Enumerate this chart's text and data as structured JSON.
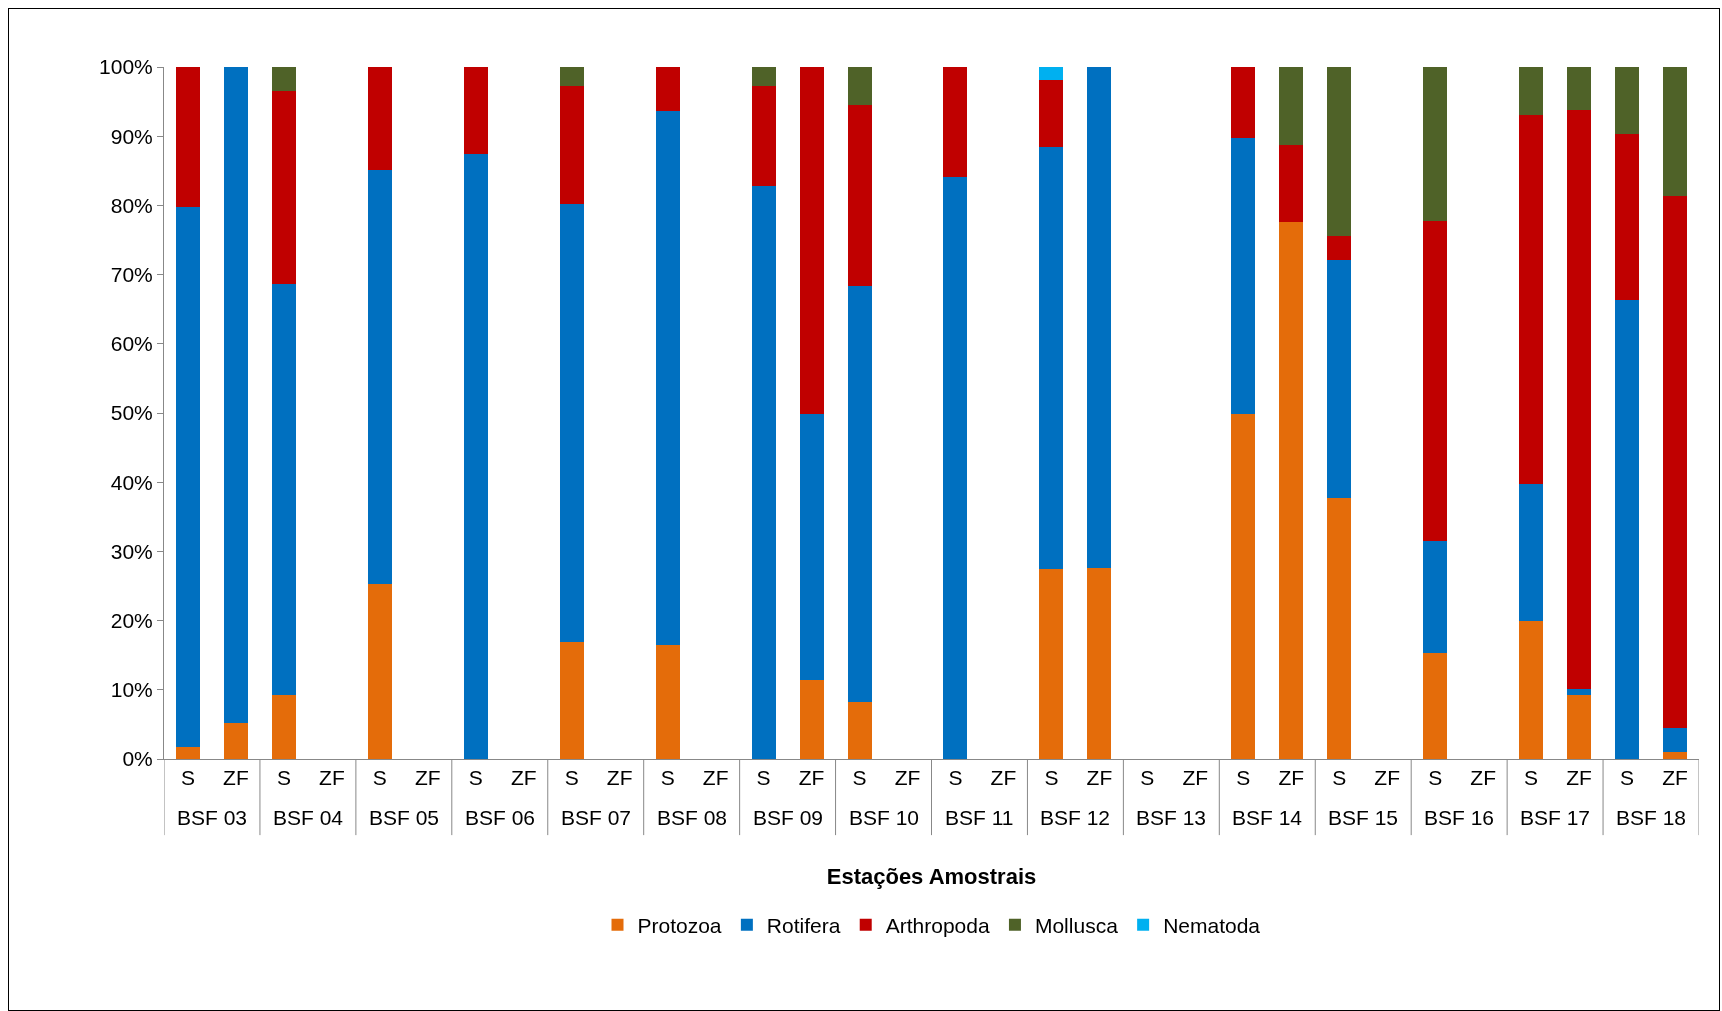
{
  "chart_data": {
    "type": "bar",
    "stacked": true,
    "xlabel": "Estações Amostrais",
    "categories": [
      "S",
      "ZF",
      "S",
      "ZF",
      "S",
      "ZF",
      "S",
      "ZF",
      "S",
      "ZF",
      "S",
      "ZF",
      "S",
      "ZF",
      "S",
      "ZF",
      "S",
      "ZF",
      "S",
      "ZF",
      "S",
      "ZF",
      "S",
      "ZF",
      "S",
      "ZF",
      "S",
      "ZF",
      "S",
      "ZF",
      "S",
      "ZF"
    ],
    "annotations": [
      "BSF 03",
      "BSF 04",
      "BSF 05",
      "BSF 06",
      "BSF 07",
      "BSF 08",
      "BSF 09",
      "BSF 10",
      "BSF 11",
      "BSF 12",
      "BSF 13",
      "BSF 14",
      "BSF 15",
      "BSF 16",
      "BSF 17",
      "BSF 18"
    ],
    "series": [
      {
        "name": "Protozoa",
        "color": "#e46c0a",
        "values": [
          1.8,
          5.2,
          9.2,
          null,
          25.3,
          null,
          0,
          null,
          16.9,
          null,
          16.5,
          null,
          0,
          11.4,
          8.3,
          null,
          0,
          null,
          27.4,
          27.6,
          null,
          null,
          49.8,
          77.6,
          37.7,
          null,
          15.3,
          null,
          19.9,
          9.2,
          0,
          1.0
        ]
      },
      {
        "name": "Rotifera",
        "color": "#0070c0",
        "values": [
          78.0,
          94.8,
          59.4,
          null,
          59.8,
          null,
          87.4,
          null,
          63.3,
          null,
          77.1,
          null,
          82.8,
          38.4,
          60.1,
          null,
          84.1,
          null,
          61.0,
          72.4,
          null,
          null,
          39.9,
          0,
          34.4,
          null,
          16.2,
          null,
          19.9,
          0.9,
          66.4,
          3.5
        ]
      },
      {
        "name": "Arthropoda",
        "color": "#c00000",
        "values": [
          20.2,
          0,
          28.0,
          null,
          14.9,
          null,
          12.6,
          null,
          17.1,
          null,
          6.4,
          null,
          14.5,
          50.2,
          26.1,
          null,
          15.9,
          null,
          9.7,
          0,
          null,
          null,
          10.3,
          11.1,
          3.5,
          null,
          46.2,
          null,
          53.2,
          83.7,
          23.9,
          76.9
        ]
      },
      {
        "name": "Mollusca",
        "color": "#4f6228",
        "values": [
          0,
          0,
          3.4,
          null,
          0,
          null,
          0,
          null,
          2.7,
          null,
          0,
          null,
          2.7,
          0,
          5.5,
          null,
          0,
          null,
          0,
          0,
          null,
          null,
          0,
          11.3,
          24.4,
          null,
          22.3,
          null,
          7.0,
          6.2,
          9.7,
          18.6
        ]
      },
      {
        "name": "Nematoda",
        "color": "#00b0f0",
        "values": [
          0,
          0,
          0,
          null,
          0,
          null,
          0,
          null,
          0,
          null,
          0,
          null,
          0,
          0,
          0,
          null,
          0,
          null,
          1.9,
          0,
          null,
          null,
          0,
          0,
          0,
          null,
          0,
          null,
          0,
          0,
          0,
          0
        ]
      }
    ],
    "ylim": [
      0,
      100
    ],
    "yticks": [
      {
        "value": 0,
        "label": "0%"
      },
      {
        "value": 10,
        "label": "10%"
      },
      {
        "value": 20,
        "label": "20%"
      },
      {
        "value": 30,
        "label": "30%"
      },
      {
        "value": 40,
        "label": "40%"
      },
      {
        "value": 50,
        "label": "50%"
      },
      {
        "value": 60,
        "label": "60%"
      },
      {
        "value": 70,
        "label": "70%"
      },
      {
        "value": 80,
        "label": "80%"
      },
      {
        "value": 90,
        "label": "90%"
      },
      {
        "value": 100,
        "label": "100%"
      }
    ],
    "grid": false,
    "legend": "bottom"
  }
}
